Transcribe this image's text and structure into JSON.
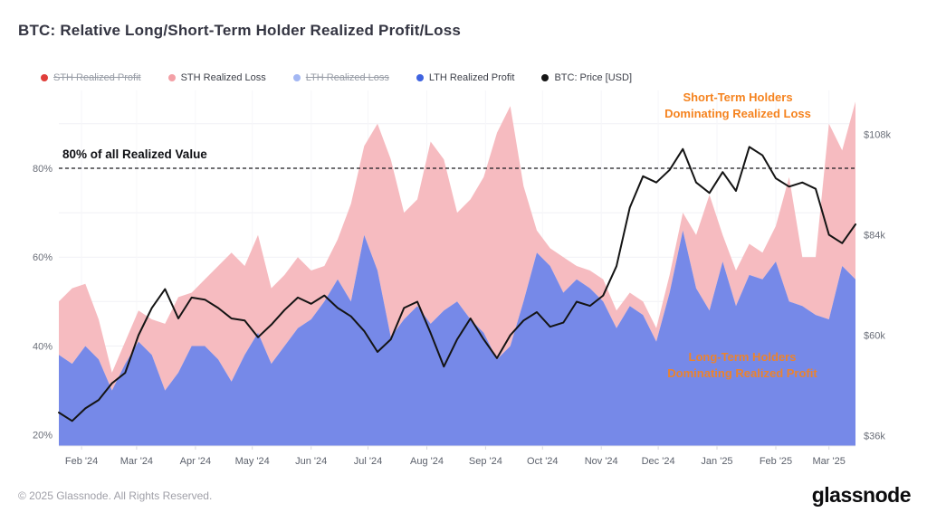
{
  "page": {
    "title": "BTC: Relative Long/Short-Term Holder Realized Profit/Loss"
  },
  "legend": {
    "items": [
      {
        "label": "STH Realized Profit",
        "color": "#e03e3a",
        "disabled": true
      },
      {
        "label": "STH Realized Loss",
        "color": "#f3a0a6",
        "disabled": false
      },
      {
        "label": "LTH Realized Loss",
        "color": "#a3b7f3",
        "disabled": true
      },
      {
        "label": "LTH Realized Profit",
        "color": "#3f63e0",
        "disabled": false
      },
      {
        "label": "BTC: Price [USD]",
        "color": "#151515",
        "disabled": false
      }
    ]
  },
  "annotations": {
    "threshold_label": "80% of all Realized Value",
    "threshold_value_pct": 80,
    "sth_note_line1": "Short-Term Holders",
    "sth_note_line2": "Dominating Realized Loss",
    "lth_note_line1": "Long-Term Holders",
    "lth_note_line2": "Dominating Realized Profit",
    "note_color": "#f5831f"
  },
  "footer": {
    "copyright": "© 2025 Glassnode. All Rights Reserved.",
    "brand": "glassnode"
  },
  "chart_data": {
    "type": "area",
    "title": "BTC: Relative Long/Short-Term Holder Realized Profit/Loss",
    "stacking": "LTH Realized Profit (base) + STH Realized Loss (stacked on top), % of all realized value",
    "grid": {
      "horizontal": true,
      "vertical": true
    },
    "legend_position": "top",
    "x_tick_labels": [
      "Feb '24",
      "Mar '24",
      "Apr '24",
      "May '24",
      "Jun '24",
      "Jul '24",
      "Aug '24",
      "Sep '24",
      "Oct '24",
      "Nov '24",
      "Dec '24",
      "Jan '25",
      "Feb '25",
      "Mar '25"
    ],
    "percent_axis": {
      "side": "left",
      "ticks": [
        20,
        40,
        60,
        80
      ],
      "tick_labels": [
        "20%",
        "40%",
        "60%",
        "80%"
      ],
      "range": [
        17.5,
        97.5
      ]
    },
    "price_axis": {
      "side": "right",
      "ticks": [
        36,
        60,
        84,
        108
      ],
      "tick_labels": [
        "$36k",
        "$60k",
        "$84k",
        "$108k"
      ],
      "range": [
        33.5,
        118.5
      ]
    },
    "dates": [
      "2024-01-20",
      "2024-01-27",
      "2024-02-03",
      "2024-02-10",
      "2024-02-17",
      "2024-02-24",
      "2024-03-02",
      "2024-03-09",
      "2024-03-16",
      "2024-03-23",
      "2024-03-30",
      "2024-04-06",
      "2024-04-13",
      "2024-04-20",
      "2024-04-27",
      "2024-05-04",
      "2024-05-11",
      "2024-05-18",
      "2024-05-25",
      "2024-06-01",
      "2024-06-08",
      "2024-06-15",
      "2024-06-22",
      "2024-06-29",
      "2024-07-06",
      "2024-07-13",
      "2024-07-20",
      "2024-07-27",
      "2024-08-03",
      "2024-08-10",
      "2024-08-17",
      "2024-08-24",
      "2024-08-31",
      "2024-09-07",
      "2024-09-14",
      "2024-09-21",
      "2024-09-28",
      "2024-10-05",
      "2024-10-12",
      "2024-10-19",
      "2024-10-26",
      "2024-11-02",
      "2024-11-09",
      "2024-11-16",
      "2024-11-23",
      "2024-11-30",
      "2024-12-07",
      "2024-12-14",
      "2024-12-21",
      "2024-12-28",
      "2025-01-04",
      "2025-01-11",
      "2025-01-18",
      "2025-01-25",
      "2025-02-01",
      "2025-02-08",
      "2025-02-15",
      "2025-02-22",
      "2025-03-01",
      "2025-03-08",
      "2025-03-15"
    ],
    "series": [
      {
        "name": "LTH Realized Profit",
        "type": "area",
        "unit": "% of realized value",
        "color": "#7689e8",
        "values": [
          38,
          36,
          40,
          37,
          30,
          36,
          41,
          38,
          30,
          34,
          40,
          40,
          37,
          32,
          38,
          43,
          36,
          40,
          44,
          46,
          50,
          55,
          50,
          65,
          57,
          42,
          46,
          49,
          45,
          48,
          50,
          46,
          43,
          37,
          40,
          50,
          61,
          58,
          52,
          55,
          53,
          50,
          44,
          49,
          47,
          41,
          52,
          66,
          53,
          48,
          59,
          49,
          56,
          55,
          59,
          50,
          49,
          47,
          46,
          58,
          55
        ]
      },
      {
        "name": "STH Realized Loss",
        "type": "area",
        "unit": "% of realized value",
        "color": "#f6bbc0",
        "stacked_on": "LTH Realized Profit",
        "values": [
          12,
          17,
          14,
          9,
          4,
          5,
          7,
          8,
          15,
          17,
          12,
          15,
          21,
          29,
          20,
          22,
          17,
          16,
          16,
          11,
          8,
          9,
          22,
          20,
          33,
          40,
          24,
          24,
          41,
          34,
          20,
          27,
          35,
          51,
          54,
          26,
          5,
          4,
          8,
          3,
          4,
          5,
          4,
          3,
          3,
          3,
          4,
          4,
          12,
          26,
          6,
          8,
          7,
          6,
          8,
          28,
          11,
          13,
          44,
          26,
          40
        ]
      },
      {
        "name": "BTC: Price [USD]",
        "type": "line",
        "unit": "thousand USD",
        "color": "#141414",
        "values": [
          41.5,
          39.5,
          42.5,
          44.5,
          48.5,
          51,
          60,
          66.5,
          71,
          64,
          69,
          68.5,
          66.5,
          64,
          63.5,
          59.5,
          62.5,
          66,
          69,
          67.5,
          69.5,
          66.5,
          64.5,
          61,
          56,
          59,
          66.5,
          68,
          60.5,
          52.5,
          59,
          64,
          59,
          54.5,
          60,
          63.5,
          65.5,
          62,
          63,
          68,
          67,
          69.5,
          76.5,
          90.5,
          98,
          96.5,
          99.5,
          104.5,
          96.5,
          94,
          99,
          94.5,
          105,
          103,
          97.5,
          95.5,
          96.5,
          95,
          84,
          82,
          86.5
        ]
      }
    ]
  }
}
